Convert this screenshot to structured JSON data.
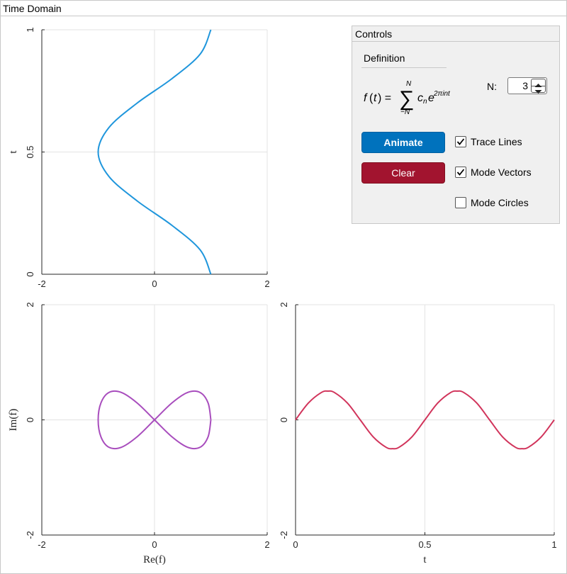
{
  "panel": {
    "title": "Time Domain"
  },
  "controls": {
    "title": "Controls",
    "definition_label": "Definition",
    "n_label": "N:",
    "n_value": "3",
    "animate_label": "Animate",
    "clear_label": "Clear",
    "checkboxes": [
      {
        "label": "Trace Lines",
        "checked": true
      },
      {
        "label": "Mode Vectors",
        "checked": true
      },
      {
        "label": "Mode Circles",
        "checked": false
      }
    ],
    "colors": {
      "animate": "#0072bd",
      "clear": "#a2142f"
    }
  },
  "chart_data": [
    {
      "type": "line",
      "name": "time-domain",
      "xlim": [
        -2,
        2
      ],
      "ylim": [
        0,
        1
      ],
      "xticks": [
        "-2",
        "0",
        "2"
      ],
      "yticks": [
        "0",
        "0.5",
        "1"
      ],
      "xlabel": "",
      "ylabel": "t",
      "grid": true,
      "color": "#1f96dc",
      "series": [
        {
          "x": [
            1.0,
            0.809,
            0.309,
            -0.309,
            -0.809,
            -1.0,
            -0.809,
            -0.309,
            0.309,
            0.809,
            1.0
          ],
          "y": [
            0,
            0.1,
            0.2,
            0.3,
            0.4,
            0.5,
            0.6,
            0.7,
            0.8,
            0.9,
            1.0
          ]
        }
      ]
    },
    {
      "type": "line",
      "name": "complex-plane",
      "xlim": [
        -2,
        2
      ],
      "ylim": [
        -2,
        2
      ],
      "xticks": [
        "-2",
        "0",
        "2"
      ],
      "yticks": [
        "-2",
        "0",
        "2"
      ],
      "xlabel": "Re(f)",
      "ylabel": "Im(f)",
      "grid": true,
      "color": "#a84dbd",
      "series": [
        {
          "x": [
            1.0,
            0.951,
            0.809,
            0.588,
            0.309,
            0.0,
            -0.309,
            -0.588,
            -0.809,
            -0.951,
            -1.0,
            -0.951,
            -0.809,
            -0.588,
            -0.309,
            0.0,
            0.309,
            0.588,
            0.809,
            0.951,
            1.0
          ],
          "y": [
            0.0,
            0.294,
            0.476,
            0.476,
            0.294,
            0.0,
            -0.294,
            -0.476,
            -0.476,
            -0.294,
            0.0,
            0.294,
            0.476,
            0.476,
            0.294,
            0.0,
            -0.294,
            -0.476,
            -0.476,
            -0.294,
            0.0
          ]
        }
      ]
    },
    {
      "type": "line",
      "name": "imaginary-vs-t",
      "xlim": [
        0,
        1
      ],
      "ylim": [
        -2,
        2
      ],
      "xticks": [
        "0",
        "0.5",
        "1"
      ],
      "yticks": [
        "-2",
        "0",
        "2"
      ],
      "xlabel": "t",
      "ylabel": "",
      "grid": true,
      "color": "#d1345b",
      "series": [
        {
          "x": [
            0,
            0.05,
            0.1,
            0.125,
            0.15,
            0.2,
            0.25,
            0.3,
            0.35,
            0.375,
            0.4,
            0.45,
            0.5,
            0.55,
            0.6,
            0.625,
            0.65,
            0.7,
            0.75,
            0.8,
            0.85,
            0.875,
            0.9,
            0.95,
            1.0
          ],
          "y": [
            0,
            0.294,
            0.476,
            0.5,
            0.476,
            0.294,
            0,
            -0.294,
            -0.476,
            -0.5,
            -0.476,
            -0.294,
            0,
            0.294,
            0.476,
            0.5,
            0.476,
            0.294,
            0,
            -0.294,
            -0.476,
            -0.5,
            -0.476,
            -0.294,
            0
          ]
        }
      ]
    }
  ]
}
